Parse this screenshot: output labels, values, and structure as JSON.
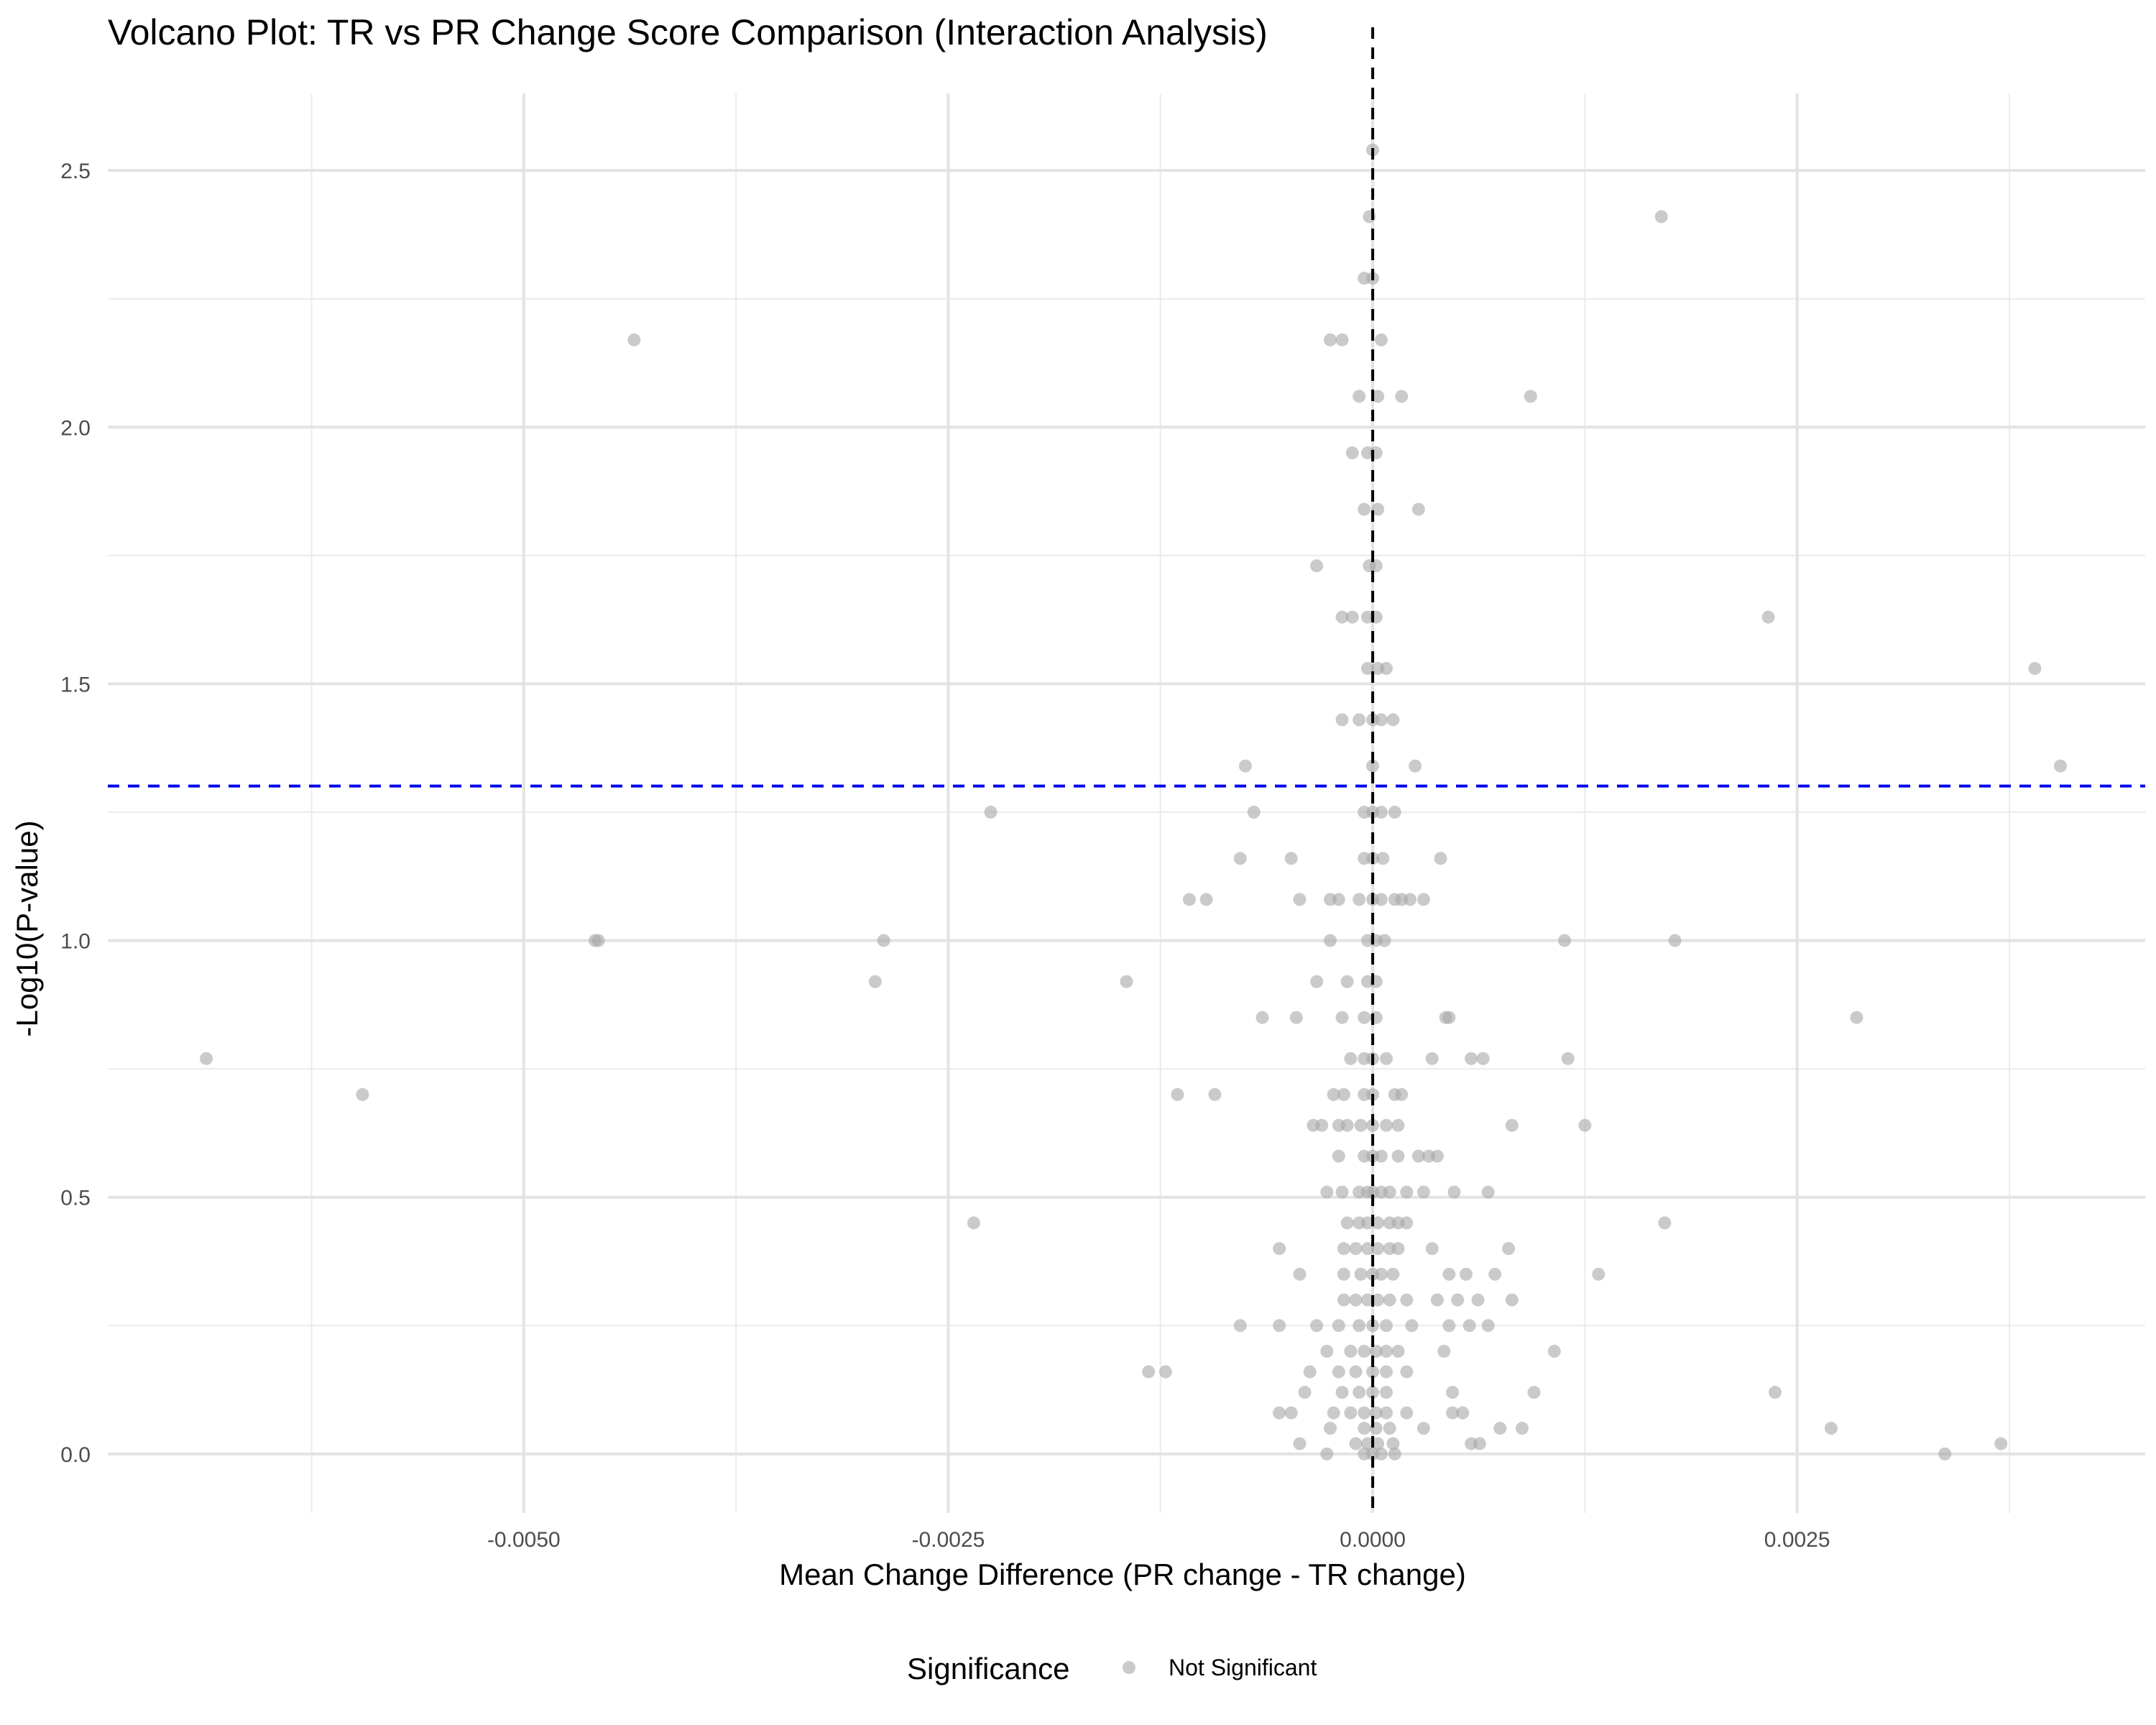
{
  "chart_data": {
    "type": "scatter",
    "title": "Volcano Plot: TR vs PR Change Score Comparison (Interaction Analysis)",
    "xlabel": "Mean Change Difference (PR change - TR change)",
    "ylabel": "-Log10(P-value)",
    "xlim": [
      -0.00745,
      0.00455
    ],
    "ylim": [
      -0.115,
      2.65
    ],
    "x_ticks": [
      {
        "value": -0.005,
        "label": "-0.0050"
      },
      {
        "value": -0.0025,
        "label": "-0.0025"
      },
      {
        "value": 0,
        "label": "0.0000"
      },
      {
        "value": 0.0025,
        "label": "0.0025"
      }
    ],
    "x_minor": [
      -0.00625,
      -0.00375,
      -0.00125,
      0.00125,
      0.00375
    ],
    "y_ticks": [
      {
        "value": 0,
        "label": "0.0"
      },
      {
        "value": 0.5,
        "label": "0.5"
      },
      {
        "value": 1.0,
        "label": "1.0"
      },
      {
        "value": 1.5,
        "label": "1.5"
      },
      {
        "value": 2.0,
        "label": "2.0"
      },
      {
        "value": 2.5,
        "label": "2.5"
      }
    ],
    "y_minor": [
      0.25,
      0.75,
      1.25,
      1.75,
      2.25
    ],
    "grid": true,
    "reference_lines": [
      {
        "orientation": "horizontal",
        "value": 1.301,
        "color": "#0000ee",
        "style": "dashed"
      },
      {
        "orientation": "vertical",
        "value": 0,
        "color": "#000000",
        "style": "dashed"
      }
    ],
    "legend": {
      "title": "Significance",
      "position": "bottom",
      "entries": [
        {
          "label": "Not Significant",
          "color": "#a6a6a6"
        }
      ]
    },
    "series": [
      {
        "name": "Not Significant",
        "color": "#a6a6a6",
        "points": [
          [
            0.0,
            2.54
          ],
          [
            -2e-05,
            2.41
          ],
          [
            0.0017,
            2.41
          ],
          [
            -5e-05,
            2.29
          ],
          [
            0.0,
            2.29
          ],
          [
            -0.00435,
            2.17
          ],
          [
            -0.00025,
            2.17
          ],
          [
            -0.00018,
            2.17
          ],
          [
            5e-05,
            2.17
          ],
          [
            -8e-05,
            2.06
          ],
          [
            3e-05,
            2.06
          ],
          [
            0.00017,
            2.06
          ],
          [
            0.00093,
            2.06
          ],
          [
            -0.00012,
            1.95
          ],
          [
            -3e-05,
            1.95
          ],
          [
            2e-05,
            1.95
          ],
          [
            -5e-05,
            1.84
          ],
          [
            3e-05,
            1.84
          ],
          [
            0.00027,
            1.84
          ],
          [
            -0.00033,
            1.73
          ],
          [
            -2e-05,
            1.73
          ],
          [
            2e-05,
            1.73
          ],
          [
            -0.00018,
            1.63
          ],
          [
            -0.00012,
            1.63
          ],
          [
            -3e-05,
            1.63
          ],
          [
            2e-05,
            1.63
          ],
          [
            0.00233,
            1.63
          ],
          [
            -3e-05,
            1.53
          ],
          [
            3e-05,
            1.53
          ],
          [
            8e-05,
            1.53
          ],
          [
            0.0039,
            1.53
          ],
          [
            -0.00018,
            1.43
          ],
          [
            -8e-05,
            1.43
          ],
          [
            0.0,
            1.43
          ],
          [
            5e-05,
            1.43
          ],
          [
            0.00012,
            1.43
          ],
          [
            -0.00075,
            1.34
          ],
          [
            0.0,
            1.34
          ],
          [
            0.00025,
            1.34
          ],
          [
            0.00405,
            1.34
          ],
          [
            -0.00225,
            1.25
          ],
          [
            -0.0007,
            1.25
          ],
          [
            -5e-05,
            1.25
          ],
          [
            0.0,
            1.25
          ],
          [
            5e-05,
            1.25
          ],
          [
            0.00013,
            1.25
          ],
          [
            -0.00078,
            1.16
          ],
          [
            -0.00048,
            1.16
          ],
          [
            -5e-05,
            1.16
          ],
          [
            0.0,
            1.16
          ],
          [
            6e-05,
            1.16
          ],
          [
            0.0004,
            1.16
          ],
          [
            -0.00108,
            1.08
          ],
          [
            -0.00098,
            1.08
          ],
          [
            -0.00043,
            1.08
          ],
          [
            -0.00025,
            1.08
          ],
          [
            -0.0002,
            1.08
          ],
          [
            -8e-05,
            1.08
          ],
          [
            0.0,
            1.08
          ],
          [
            5e-05,
            1.08
          ],
          [
            0.00013,
            1.08
          ],
          [
            0.00017,
            1.08
          ],
          [
            0.00022,
            1.08
          ],
          [
            0.0003,
            1.08
          ],
          [
            -0.00458,
            1.0
          ],
          [
            -0.00456,
            1.0
          ],
          [
            -0.00288,
            1.0
          ],
          [
            -0.00025,
            1.0
          ],
          [
            -3e-05,
            1.0
          ],
          [
            2e-05,
            1.0
          ],
          [
            7e-05,
            1.0
          ],
          [
            0.00113,
            1.0
          ],
          [
            0.00178,
            1.0
          ],
          [
            -0.00293,
            0.92
          ],
          [
            -0.00145,
            0.92
          ],
          [
            -0.00033,
            0.92
          ],
          [
            -0.00015,
            0.92
          ],
          [
            -3e-05,
            0.92
          ],
          [
            2e-05,
            0.92
          ],
          [
            -0.00065,
            0.85
          ],
          [
            -0.00045,
            0.85
          ],
          [
            -0.00018,
            0.85
          ],
          [
            -5e-05,
            0.85
          ],
          [
            2e-05,
            0.85
          ],
          [
            0.00043,
            0.85
          ],
          [
            0.00045,
            0.85
          ],
          [
            0.00285,
            0.85
          ],
          [
            -0.00687,
            0.77
          ],
          [
            -0.00013,
            0.77
          ],
          [
            -5e-05,
            0.77
          ],
          [
            0.0,
            0.77
          ],
          [
            8e-05,
            0.77
          ],
          [
            0.00035,
            0.77
          ],
          [
            0.00058,
            0.77
          ],
          [
            0.00065,
            0.77
          ],
          [
            0.00115,
            0.77
          ],
          [
            -0.00595,
            0.7
          ],
          [
            -0.00115,
            0.7
          ],
          [
            -0.00093,
            0.7
          ],
          [
            -0.00023,
            0.7
          ],
          [
            -0.00017,
            0.7
          ],
          [
            -5e-05,
            0.7
          ],
          [
            0.0,
            0.7
          ],
          [
            0.00013,
            0.7
          ],
          [
            0.00017,
            0.7
          ],
          [
            -0.00035,
            0.64
          ],
          [
            -0.0003,
            0.64
          ],
          [
            -0.0002,
            0.64
          ],
          [
            -0.00015,
            0.64
          ],
          [
            -7e-05,
            0.64
          ],
          [
            0.0,
            0.64
          ],
          [
            8e-05,
            0.64
          ],
          [
            0.00015,
            0.64
          ],
          [
            0.00082,
            0.64
          ],
          [
            0.00125,
            0.64
          ],
          [
            -0.0002,
            0.58
          ],
          [
            -5e-05,
            0.58
          ],
          [
            0.0,
            0.58
          ],
          [
            5e-05,
            0.58
          ],
          [
            0.00015,
            0.58
          ],
          [
            0.00027,
            0.58
          ],
          [
            0.00033,
            0.58
          ],
          [
            0.00038,
            0.58
          ],
          [
            -0.00027,
            0.51
          ],
          [
            -0.00018,
            0.51
          ],
          [
            -8e-05,
            0.51
          ],
          [
            -3e-05,
            0.51
          ],
          [
            0.0,
            0.51
          ],
          [
            5e-05,
            0.51
          ],
          [
            0.0001,
            0.51
          ],
          [
            0.0002,
            0.51
          ],
          [
            0.0003,
            0.51
          ],
          [
            0.00048,
            0.51
          ],
          [
            0.00068,
            0.51
          ],
          [
            -0.00235,
            0.45
          ],
          [
            -0.00015,
            0.45
          ],
          [
            -8e-05,
            0.45
          ],
          [
            -3e-05,
            0.45
          ],
          [
            3e-05,
            0.45
          ],
          [
            0.0001,
            0.45
          ],
          [
            0.00015,
            0.45
          ],
          [
            0.0002,
            0.45
          ],
          [
            0.00172,
            0.45
          ],
          [
            -0.00055,
            0.4
          ],
          [
            -0.00017,
            0.4
          ],
          [
            -0.0001,
            0.4
          ],
          [
            -3e-05,
            0.4
          ],
          [
            3e-05,
            0.4
          ],
          [
            0.0001,
            0.4
          ],
          [
            0.00015,
            0.4
          ],
          [
            0.00035,
            0.4
          ],
          [
            0.0008,
            0.4
          ],
          [
            -0.00043,
            0.35
          ],
          [
            -0.00017,
            0.35
          ],
          [
            -7e-05,
            0.35
          ],
          [
            0.0,
            0.35
          ],
          [
            5e-05,
            0.35
          ],
          [
            0.00012,
            0.35
          ],
          [
            0.00045,
            0.35
          ],
          [
            0.00055,
            0.35
          ],
          [
            0.00072,
            0.35
          ],
          [
            0.00133,
            0.35
          ],
          [
            -0.00017,
            0.3
          ],
          [
            -0.0001,
            0.3
          ],
          [
            -3e-05,
            0.3
          ],
          [
            3e-05,
            0.3
          ],
          [
            0.0001,
            0.3
          ],
          [
            0.0002,
            0.3
          ],
          [
            0.00038,
            0.3
          ],
          [
            0.0005,
            0.3
          ],
          [
            0.00062,
            0.3
          ],
          [
            0.00082,
            0.3
          ],
          [
            -0.00078,
            0.25
          ],
          [
            -0.00055,
            0.25
          ],
          [
            -0.00033,
            0.25
          ],
          [
            -0.0002,
            0.25
          ],
          [
            -8e-05,
            0.25
          ],
          [
            0.0,
            0.25
          ],
          [
            8e-05,
            0.25
          ],
          [
            0.00023,
            0.25
          ],
          [
            0.00045,
            0.25
          ],
          [
            0.00057,
            0.25
          ],
          [
            0.00068,
            0.25
          ],
          [
            -0.00027,
            0.2
          ],
          [
            -0.00013,
            0.2
          ],
          [
            -5e-05,
            0.2
          ],
          [
            2e-05,
            0.2
          ],
          [
            8e-05,
            0.2
          ],
          [
            0.00015,
            0.2
          ],
          [
            0.00042,
            0.2
          ],
          [
            0.00107,
            0.2
          ],
          [
            -0.00132,
            0.16
          ],
          [
            -0.00122,
            0.16
          ],
          [
            -0.00037,
            0.16
          ],
          [
            -0.0002,
            0.16
          ],
          [
            -0.0001,
            0.16
          ],
          [
            0.0,
            0.16
          ],
          [
            8e-05,
            0.16
          ],
          [
            0.0002,
            0.16
          ],
          [
            -0.0004,
            0.12
          ],
          [
            -0.00018,
            0.12
          ],
          [
            -8e-05,
            0.12
          ],
          [
            0.0,
            0.12
          ],
          [
            8e-05,
            0.12
          ],
          [
            0.00047,
            0.12
          ],
          [
            0.00095,
            0.12
          ],
          [
            0.00237,
            0.12
          ],
          [
            -0.00055,
            0.08
          ],
          [
            -0.00048,
            0.08
          ],
          [
            -0.00023,
            0.08
          ],
          [
            -0.00013,
            0.08
          ],
          [
            -5e-05,
            0.08
          ],
          [
            2e-05,
            0.08
          ],
          [
            8e-05,
            0.08
          ],
          [
            0.0002,
            0.08
          ],
          [
            0.00047,
            0.08
          ],
          [
            0.00053,
            0.08
          ],
          [
            -0.00025,
            0.05
          ],
          [
            -5e-05,
            0.05
          ],
          [
            2e-05,
            0.05
          ],
          [
            0.0001,
            0.05
          ],
          [
            0.0003,
            0.05
          ],
          [
            0.00075,
            0.05
          ],
          [
            0.00088,
            0.05
          ],
          [
            0.0027,
            0.05
          ],
          [
            -0.00043,
            0.02
          ],
          [
            -0.0001,
            0.02
          ],
          [
            -3e-05,
            0.02
          ],
          [
            3e-05,
            0.02
          ],
          [
            0.00012,
            0.02
          ],
          [
            0.00058,
            0.02
          ],
          [
            0.00063,
            0.02
          ],
          [
            0.0037,
            0.02
          ],
          [
            -0.00027,
            0.0
          ],
          [
            -5e-05,
            0.0
          ],
          [
            0.0,
            0.0
          ],
          [
            5e-05,
            0.0
          ],
          [
            0.00013,
            0.0
          ],
          [
            0.00337,
            0.0
          ]
        ]
      }
    ]
  }
}
